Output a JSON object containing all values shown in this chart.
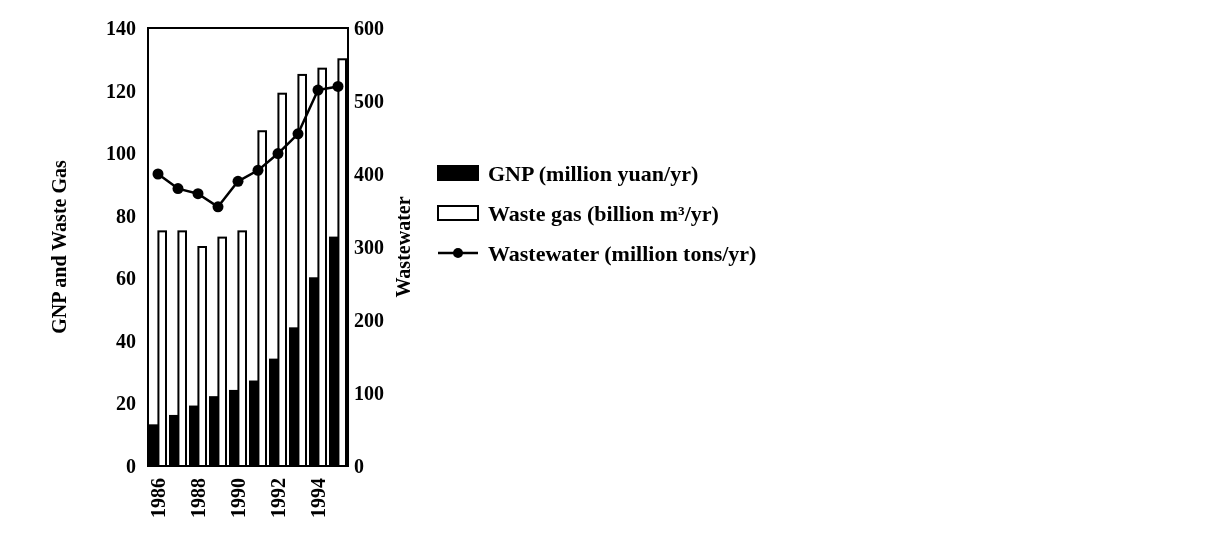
{
  "chart_data": {
    "type": "bar",
    "xlabel": null,
    "ylabel": "GNP and Waste Gas",
    "y2label": "Wastewater",
    "categories": [
      "1986",
      null,
      "1988",
      null,
      "1990",
      null,
      "1992",
      null,
      "1994",
      null
    ],
    "series": [
      {
        "name": "GNP (million yuan/yr)",
        "color": "#000000",
        "values": [
          13,
          16,
          19,
          22,
          24,
          27,
          34,
          44,
          60,
          73
        ]
      },
      {
        "name": "Waste gas (billion m³/yr)",
        "color": "#ffffff",
        "values": [
          75,
          75,
          70,
          73,
          75,
          107,
          119,
          125,
          127,
          130
        ]
      },
      {
        "name": "Wastewater (million tons/yr)",
        "type": "line",
        "axis": "y2",
        "color": "#000000",
        "marker": "circle",
        "values": [
          400,
          380,
          373,
          355,
          390,
          405,
          428,
          455,
          515,
          520
        ]
      }
    ],
    "ylim": [
      0,
      140
    ],
    "yticks": [
      0,
      20,
      40,
      60,
      80,
      100,
      120,
      140
    ],
    "y2lim": [
      0,
      600
    ],
    "y2ticks": [
      0,
      100,
      200,
      300,
      400,
      500,
      600
    ],
    "legend": "right",
    "grid": false
  }
}
